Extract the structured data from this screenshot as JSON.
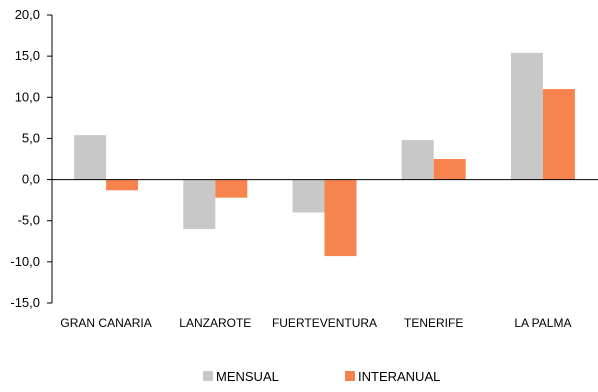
{
  "chart_data": {
    "type": "bar",
    "categories": [
      "GRAN CANARIA",
      "LANZAROTE",
      "FUERTEVENTURA",
      "TENERIFE",
      "LA PALMA"
    ],
    "series": [
      {
        "name": "MENSUAL",
        "values": [
          5.4,
          -6.0,
          -4.0,
          4.8,
          15.4
        ],
        "color": "#c8c8c8"
      },
      {
        "name": "INTERANUAL",
        "values": [
          -1.3,
          -2.2,
          -9.3,
          2.5,
          11.0
        ],
        "color": "#f7844f"
      }
    ],
    "ylim": [
      -15,
      20
    ],
    "yticks": [
      "-15,0",
      "-10,0",
      "-5,0",
      "0,0",
      "5,0",
      "10,0",
      "15,0",
      "20,0"
    ],
    "title": "",
    "xlabel": "",
    "ylabel": "",
    "grid": false,
    "legend_position": "bottom"
  }
}
